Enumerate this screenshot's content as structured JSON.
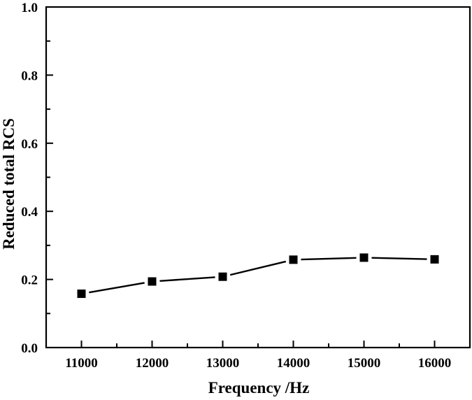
{
  "chart_data": {
    "type": "line",
    "title": "",
    "xlabel": "Frequency /Hz",
    "ylabel": "Reduced total RCS",
    "xlim": [
      10500,
      16500
    ],
    "ylim": [
      0.0,
      1.0
    ],
    "x_ticks": [
      11000,
      12000,
      13000,
      14000,
      15000,
      16000
    ],
    "x_tick_labels": [
      "11000",
      "12000",
      "13000",
      "14000",
      "15000",
      "16000"
    ],
    "x_minor_step": 500,
    "y_ticks": [
      0.0,
      0.2,
      0.4,
      0.6,
      0.8,
      1.0
    ],
    "y_tick_labels": [
      "0.0",
      "0.2",
      "0.4",
      "0.6",
      "0.8",
      "1.0"
    ],
    "y_minor_step": 0.1,
    "grid": false,
    "legend": null,
    "series": [
      {
        "name": "Reduced total RCS",
        "marker": "square",
        "color": "#000000",
        "x": [
          11000,
          12000,
          13000,
          14000,
          15000,
          16000
        ],
        "values": [
          0.158,
          0.194,
          0.208,
          0.258,
          0.264,
          0.259
        ]
      }
    ]
  }
}
